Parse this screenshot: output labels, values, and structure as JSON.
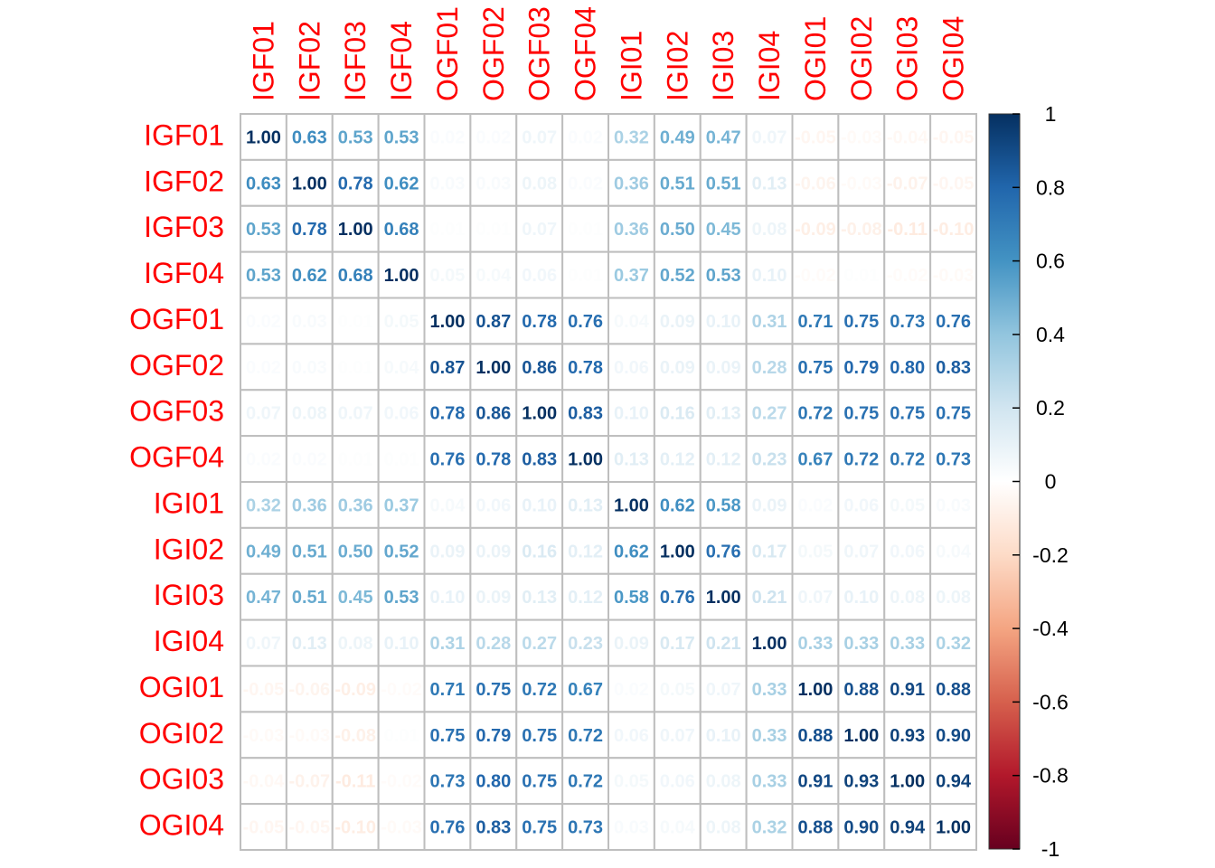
{
  "chart_data": {
    "type": "heatmap",
    "labels": [
      "IGF01",
      "IGF02",
      "IGF03",
      "IGF04",
      "OGF01",
      "OGF02",
      "OGF03",
      "OGF04",
      "IGI01",
      "IGI02",
      "IGI03",
      "IGI04",
      "OGI01",
      "OGI02",
      "OGI03",
      "OGI04"
    ],
    "matrix": [
      [
        1.0,
        0.63,
        0.53,
        0.53,
        0.02,
        0.02,
        0.07,
        0.02,
        0.32,
        0.49,
        0.47,
        0.07,
        -0.05,
        -0.03,
        -0.04,
        -0.05
      ],
      [
        0.63,
        1.0,
        0.78,
        0.62,
        0.03,
        0.03,
        0.08,
        0.02,
        0.36,
        0.51,
        0.51,
        0.13,
        -0.06,
        -0.03,
        -0.07,
        -0.05
      ],
      [
        0.53,
        0.78,
        1.0,
        0.68,
        0.01,
        0.01,
        0.07,
        0.01,
        0.36,
        0.5,
        0.45,
        0.08,
        -0.09,
        -0.08,
        -0.11,
        -0.1
      ],
      [
        0.53,
        0.62,
        0.68,
        1.0,
        0.05,
        0.04,
        0.06,
        0.01,
        0.37,
        0.52,
        0.53,
        0.1,
        -0.02,
        0.01,
        -0.02,
        -0.03
      ],
      [
        0.02,
        0.03,
        0.01,
        0.05,
        1.0,
        0.87,
        0.78,
        0.76,
        0.04,
        0.09,
        0.1,
        0.31,
        0.71,
        0.75,
        0.73,
        0.76
      ],
      [
        0.02,
        0.03,
        0.01,
        0.04,
        0.87,
        1.0,
        0.86,
        0.78,
        0.06,
        0.09,
        0.09,
        0.28,
        0.75,
        0.79,
        0.8,
        0.83
      ],
      [
        0.07,
        0.08,
        0.07,
        0.06,
        0.78,
        0.86,
        1.0,
        0.83,
        0.1,
        0.16,
        0.13,
        0.27,
        0.72,
        0.75,
        0.75,
        0.75
      ],
      [
        0.02,
        0.02,
        0.01,
        0.01,
        0.76,
        0.78,
        0.83,
        1.0,
        0.13,
        0.12,
        0.12,
        0.23,
        0.67,
        0.72,
        0.72,
        0.73
      ],
      [
        0.32,
        0.36,
        0.36,
        0.37,
        0.04,
        0.06,
        0.1,
        0.13,
        1.0,
        0.62,
        0.58,
        0.09,
        0.02,
        0.06,
        0.05,
        0.03
      ],
      [
        0.49,
        0.51,
        0.5,
        0.52,
        0.09,
        0.09,
        0.16,
        0.12,
        0.62,
        1.0,
        0.76,
        0.17,
        0.05,
        0.07,
        0.06,
        0.04
      ],
      [
        0.47,
        0.51,
        0.45,
        0.53,
        0.1,
        0.09,
        0.13,
        0.12,
        0.58,
        0.76,
        1.0,
        0.21,
        0.07,
        0.1,
        0.08,
        0.08
      ],
      [
        0.07,
        0.13,
        0.08,
        0.1,
        0.31,
        0.28,
        0.27,
        0.23,
        0.09,
        0.17,
        0.21,
        1.0,
        0.33,
        0.33,
        0.33,
        0.32
      ],
      [
        -0.05,
        -0.06,
        -0.09,
        -0.02,
        0.71,
        0.75,
        0.72,
        0.67,
        0.02,
        0.05,
        0.07,
        0.33,
        1.0,
        0.88,
        0.91,
        0.88
      ],
      [
        -0.03,
        -0.03,
        -0.08,
        0.01,
        0.75,
        0.79,
        0.75,
        0.72,
        0.06,
        0.07,
        0.1,
        0.33,
        0.88,
        1.0,
        0.93,
        0.9
      ],
      [
        -0.04,
        -0.07,
        -0.11,
        -0.02,
        0.73,
        0.8,
        0.75,
        0.72,
        0.05,
        0.06,
        0.08,
        0.33,
        0.91,
        0.93,
        1.0,
        0.94
      ],
      [
        -0.05,
        -0.05,
        -0.1,
        -0.03,
        0.76,
        0.83,
        0.75,
        0.73,
        0.03,
        0.04,
        0.08,
        0.32,
        0.88,
        0.9,
        0.94,
        1.0
      ]
    ],
    "color_scale": {
      "range": [
        -1,
        1
      ],
      "ticks": [
        "1",
        "0.8",
        "0.6",
        "0.4",
        "0.2",
        "0",
        "-0.2",
        "-0.4",
        "-0.6",
        "-0.8",
        "-1"
      ],
      "stops": [
        "#67001F",
        "#B2182B",
        "#D6604D",
        "#F4A582",
        "#FDDBC7",
        "#FFFFFF",
        "#D1E5F0",
        "#92C5DE",
        "#4393C3",
        "#2166AC",
        "#053061"
      ]
    },
    "label_color": "#FF0000",
    "grid_color": "#BEBEBE",
    "legend_position": "right"
  }
}
